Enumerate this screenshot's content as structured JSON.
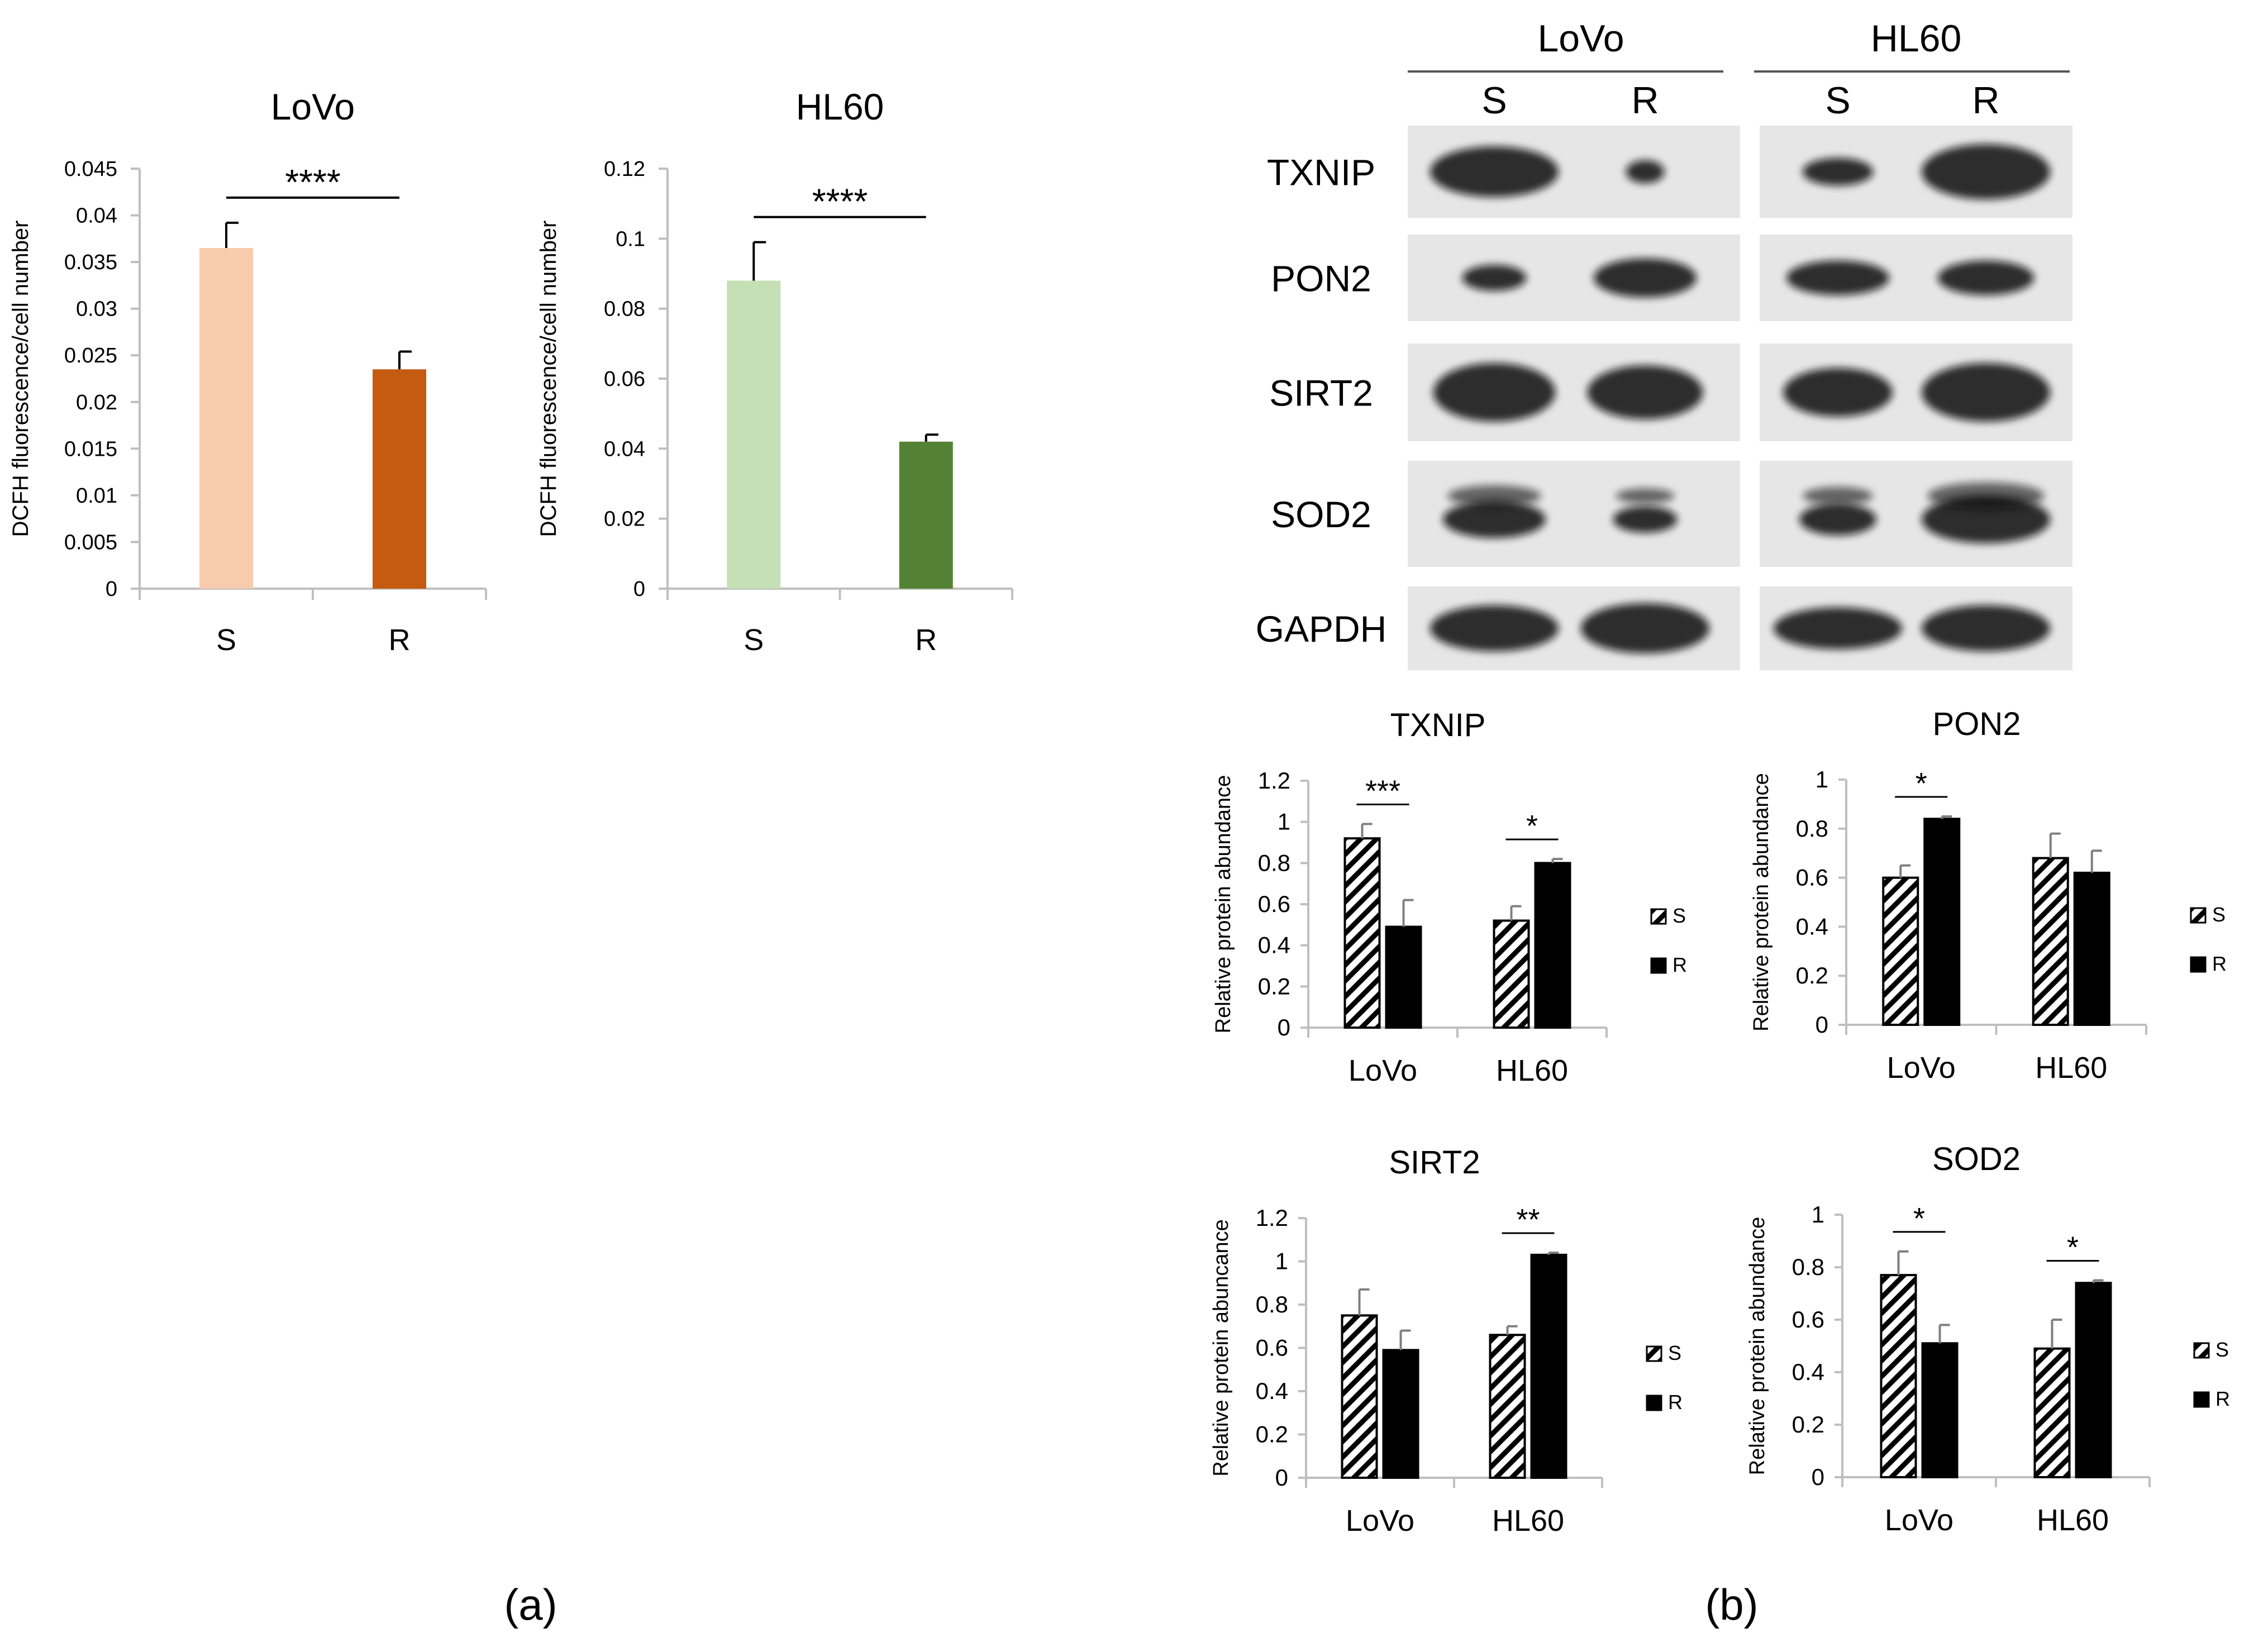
{
  "panel_labels": {
    "a": "(a)",
    "b": "(b)"
  },
  "colors": {
    "lovo_s": "#f8cbad",
    "lovo_r": "#c55a11",
    "hl60_s": "#c5e0b4",
    "hl60_r": "#548235",
    "blot_bg": "#e6e6e6",
    "band": "#111111",
    "axis": "#bfbfbf"
  },
  "blot": {
    "cell_lines": [
      "LoVo",
      "HL60"
    ],
    "lanes": [
      "S",
      "R",
      "S",
      "R"
    ],
    "proteins": [
      "TXNIP",
      "PON2",
      "SIRT2",
      "SOD2",
      "GAPDH"
    ]
  },
  "chart_data": [
    {
      "id": "dcfh-lovo",
      "type": "bar",
      "title": "LoVo",
      "ylabel": "DCFH fluorescence/cell number",
      "categories": [
        "S",
        "R"
      ],
      "values": [
        0.0365,
        0.0235
      ],
      "errors": [
        0.0027,
        0.0019
      ],
      "ylim": [
        0,
        0.045
      ],
      "yticks": [
        "0",
        "0.005",
        "0.01",
        "0.015",
        "0.02",
        "0.025",
        "0.03",
        "0.035",
        "0.04",
        "0.045"
      ],
      "bar_colors": [
        "#f8cbad",
        "#c55a11"
      ],
      "significance": "****"
    },
    {
      "id": "dcfh-hl60",
      "type": "bar",
      "title": "HL60",
      "ylabel": "DCFH fluorescence/cell number",
      "categories": [
        "S",
        "R"
      ],
      "values": [
        0.088,
        0.042
      ],
      "errors": [
        0.011,
        0.002
      ],
      "ylim": [
        0,
        0.12
      ],
      "yticks": [
        "0",
        "0.02",
        "0.04",
        "0.06",
        "0.08",
        "0.1",
        "0.12"
      ],
      "bar_colors": [
        "#c5e0b4",
        "#548235"
      ],
      "significance": "****"
    },
    {
      "id": "txnip",
      "type": "bar",
      "title": "TXNIP",
      "ylabel": "Relative protein abundance",
      "categories": [
        "LoVo",
        "HL60"
      ],
      "series": [
        {
          "name": "S",
          "values": [
            0.92,
            0.52
          ],
          "errors": [
            0.07,
            0.07
          ]
        },
        {
          "name": "R",
          "values": [
            0.49,
            0.8
          ],
          "errors": [
            0.13,
            0.02
          ]
        }
      ],
      "ylim": [
        0,
        1.2
      ],
      "yticks": [
        "0",
        "0.2",
        "0.4",
        "0.6",
        "0.8",
        "1",
        "1.2"
      ],
      "significance": [
        "***",
        "*"
      ]
    },
    {
      "id": "pon2",
      "type": "bar",
      "title": "PON2",
      "ylabel": "Relative protein abundance",
      "categories": [
        "LoVo",
        "HL60"
      ],
      "series": [
        {
          "name": "S",
          "values": [
            0.6,
            0.68
          ],
          "errors": [
            0.05,
            0.1
          ]
        },
        {
          "name": "R",
          "values": [
            0.84,
            0.62
          ],
          "errors": [
            0.01,
            0.09
          ]
        }
      ],
      "ylim": [
        0,
        1
      ],
      "yticks": [
        "0",
        "0.2",
        "0.4",
        "0.6",
        "0.8",
        "1"
      ],
      "significance": [
        "*",
        ""
      ]
    },
    {
      "id": "sirt2",
      "type": "bar",
      "title": "SIRT2",
      "ylabel": "Relative protein abuncance",
      "categories": [
        "LoVo",
        "HL60"
      ],
      "series": [
        {
          "name": "S",
          "values": [
            0.75,
            0.66
          ],
          "errors": [
            0.12,
            0.04
          ]
        },
        {
          "name": "R",
          "values": [
            0.59,
            1.03
          ],
          "errors": [
            0.09,
            0.01
          ]
        }
      ],
      "ylim": [
        0,
        1.2
      ],
      "yticks": [
        "0",
        "0.2",
        "0.4",
        "0.6",
        "0.8",
        "1",
        "1.2"
      ],
      "significance": [
        "",
        "**"
      ]
    },
    {
      "id": "sod2",
      "type": "bar",
      "title": "SOD2",
      "ylabel": "Relative protein abundance",
      "categories": [
        "LoVo",
        "HL60"
      ],
      "series": [
        {
          "name": "S",
          "values": [
            0.77,
            0.49
          ],
          "errors": [
            0.09,
            0.11
          ]
        },
        {
          "name": "R",
          "values": [
            0.51,
            0.74
          ],
          "errors": [
            0.07,
            0.01
          ]
        }
      ],
      "ylim": [
        0,
        1
      ],
      "yticks": [
        "0",
        "0.2",
        "0.4",
        "0.6",
        "0.8",
        "1"
      ],
      "significance": [
        "*",
        "*"
      ]
    }
  ]
}
